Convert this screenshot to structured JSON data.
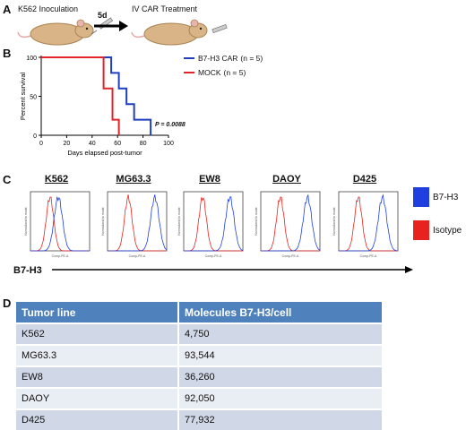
{
  "panel_letters": {
    "a": "A",
    "b": "B",
    "c": "C",
    "d": "D"
  },
  "panel_a": {
    "step1": "K562 Inoculation",
    "arrow_label": "5d",
    "step2": "IV CAR Treatment"
  },
  "panel_b": {
    "legend": [
      {
        "name": "B7-H3 CAR",
        "n": "(n = 5)",
        "color": "#1f3fbf"
      },
      {
        "name": "MOCK",
        "n": "(n = 5)",
        "color": "#e0242a"
      }
    ],
    "p_value": "P = 0.0088"
  },
  "panel_c": {
    "lines": [
      "K562",
      "MG63.3",
      "EW8",
      "DAOY",
      "D425"
    ],
    "y_axis_label": "Normalized to mode",
    "x_axis_label": "Comp-PE-A",
    "axis_title": "B7-H3",
    "legend": [
      {
        "name": "B7-H3",
        "color": "#1f3fe0"
      },
      {
        "name": "Isotype",
        "color": "#e8231f"
      }
    ]
  },
  "panel_d": {
    "headers": [
      "Tumor line",
      "Molecules  B7-H3/cell"
    ],
    "rows": [
      [
        "K562",
        "4,750"
      ],
      [
        "MG63.3",
        "93,544"
      ],
      [
        "EW8",
        "36,260"
      ],
      [
        "DAOY",
        "92,050"
      ],
      [
        "D425",
        "77,932"
      ]
    ]
  },
  "chart_data": [
    {
      "type": "line",
      "step": true,
      "xlabel": "Days elapsed post-tumor",
      "ylabel": "Percent survival",
      "xlim": [
        0,
        100
      ],
      "ylim": [
        0,
        100
      ],
      "xticks": [
        0,
        20,
        40,
        60,
        80,
        100
      ],
      "yticks": [
        0,
        50,
        100
      ],
      "series": [
        {
          "name": "B7-H3 CAR (n = 5)",
          "color": "#1f3fbf",
          "x": [
            0,
            55,
            61,
            67,
            73,
            86
          ],
          "y": [
            100,
            80,
            60,
            40,
            20,
            0
          ]
        },
        {
          "name": "MOCK (n = 5)",
          "color": "#e0242a",
          "x": [
            0,
            49,
            56,
            61
          ],
          "y": [
            100,
            60,
            20,
            0
          ]
        }
      ],
      "annotation": "P = 0.0088"
    }
  ]
}
